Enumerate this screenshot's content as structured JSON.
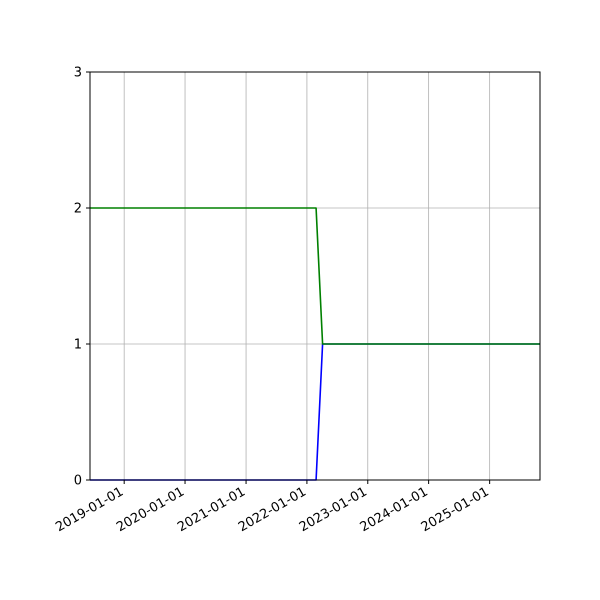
{
  "chart_data": {
    "type": "line",
    "title": "",
    "xlabel": "",
    "ylabel": "",
    "x_axis": {
      "kind": "date",
      "range": [
        "2018-06-10",
        "2025-10-30"
      ],
      "ticks": [
        "2019-01-01",
        "2020-01-01",
        "2021-01-01",
        "2022-01-01",
        "2023-01-01",
        "2024-01-01",
        "2025-01-01"
      ]
    },
    "y_axis": {
      "range": [
        0,
        3
      ],
      "ticks": [
        "0",
        "1",
        "2",
        "3"
      ]
    },
    "grid": true,
    "legend": "none",
    "series": [
      {
        "color": "#0000ff",
        "points": [
          {
            "x": "2018-06-10",
            "y": 0
          },
          {
            "x": "2022-02-25",
            "y": 0
          },
          {
            "x": "2022-04-05",
            "y": 1
          },
          {
            "x": "2025-10-30",
            "y": 1
          }
        ]
      },
      {
        "color": "#008000",
        "points": [
          {
            "x": "2018-06-10",
            "y": 2
          },
          {
            "x": "2022-02-25",
            "y": 2
          },
          {
            "x": "2022-04-05",
            "y": 1
          },
          {
            "x": "2025-10-30",
            "y": 1
          }
        ]
      }
    ]
  }
}
